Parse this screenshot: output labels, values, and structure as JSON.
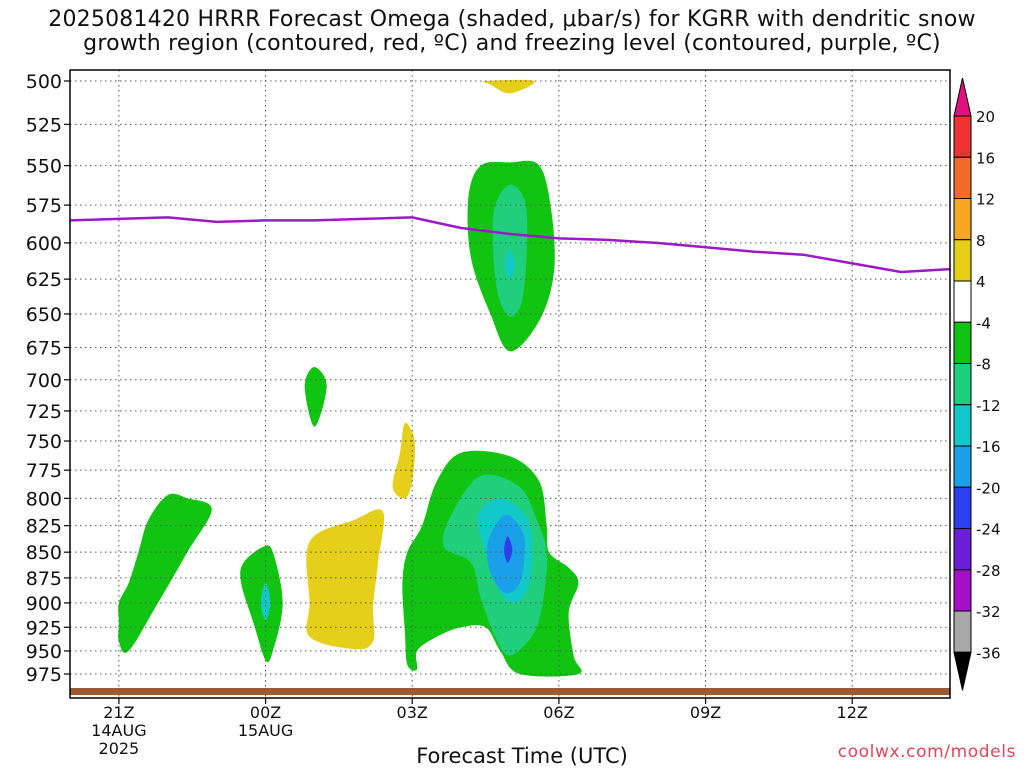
{
  "title": {
    "line1": "2025081420 HRRR Forecast Omega (shaded, μbar/s) for KGRR with dendritic snow",
    "line2": "growth region (contoured, red, ºC) and freezing level (contoured, purple, ºC)"
  },
  "credit": "coolwx.com/models",
  "chart_data": {
    "type": "time-height cross section (filled contour)",
    "xlabel": "Forecast Time (UTC)",
    "x_ticks": [
      {
        "hour": 1,
        "label": "21Z",
        "sub1": "14AUG",
        "sub2": "2025"
      },
      {
        "hour": 4,
        "label": "00Z",
        "sub1": "15AUG",
        "sub2": ""
      },
      {
        "hour": 7,
        "label": "03Z",
        "sub1": "",
        "sub2": ""
      },
      {
        "hour": 10,
        "label": "06Z",
        "sub1": "",
        "sub2": ""
      },
      {
        "hour": 13,
        "label": "09Z",
        "sub1": "",
        "sub2": ""
      },
      {
        "hour": 16,
        "label": "12Z",
        "sub1": "",
        "sub2": ""
      }
    ],
    "x_range_hours": [
      0,
      18
    ],
    "y_scale": "log-pressure (inverted)",
    "y_range_hPa": [
      1000,
      500
    ],
    "y_ticks": [
      "500",
      "525",
      "550",
      "575",
      "600",
      "625",
      "650",
      "675",
      "700",
      "725",
      "750",
      "775",
      "800",
      "825",
      "850",
      "875",
      "900",
      "925",
      "950",
      "975"
    ],
    "grid": true,
    "colorbar": {
      "labels": [
        "20",
        "16",
        "12",
        "8",
        "4",
        "-4",
        "-8",
        "-12",
        "-16",
        "-20",
        "-24",
        "-28",
        "-32",
        "-36"
      ],
      "bins": [
        {
          "range": ">20",
          "color": "#e0117f"
        },
        {
          "range": "16 to 20",
          "color": "#ee3333"
        },
        {
          "range": "12 to 16",
          "color": "#f26b2a"
        },
        {
          "range": "8 to 12",
          "color": "#f5a623"
        },
        {
          "range": "4 to 8",
          "color": "#e6cf1a"
        },
        {
          "range": "-4 to 4",
          "color": "#ffffff"
        },
        {
          "range": "-8 to -4",
          "color": "#12c412"
        },
        {
          "range": "-12 to -8",
          "color": "#1fcf7c"
        },
        {
          "range": "-16 to -12",
          "color": "#12c8c8"
        },
        {
          "range": "-20 to -16",
          "color": "#1aa0e8"
        },
        {
          "range": "-24 to -20",
          "color": "#2a3ff0"
        },
        {
          "range": "-28 to -24",
          "color": "#6a1fd6"
        },
        {
          "range": "-32 to -28",
          "color": "#a60fc8"
        },
        {
          "range": "-36 to -32",
          "color": "#a8a8a8"
        },
        {
          "range": "<-36",
          "color": "#000000"
        }
      ]
    },
    "freezing_level": {
      "color": "#9b19c7",
      "points": [
        [
          0,
          585
        ],
        [
          1,
          584
        ],
        [
          2,
          583
        ],
        [
          3,
          586
        ],
        [
          4,
          585
        ],
        [
          5,
          585
        ],
        [
          6,
          584
        ],
        [
          7,
          583
        ],
        [
          8,
          590
        ],
        [
          9,
          594
        ],
        [
          10,
          597
        ],
        [
          11,
          598
        ],
        [
          12,
          600
        ],
        [
          13,
          603
        ],
        [
          14,
          606
        ],
        [
          15,
          608
        ],
        [
          16,
          614
        ],
        [
          17,
          620
        ],
        [
          18,
          618
        ]
      ]
    },
    "omega_features": [
      {
        "level": "4 to 8",
        "color": "#e6cf1a",
        "points": [
          [
            8.5,
            500
          ],
          [
            9.5,
            500
          ],
          [
            9.0,
            507
          ],
          [
            8.6,
            502
          ]
        ]
      },
      {
        "level": "-8 to -4",
        "color": "#12c412",
        "points": [
          [
            9.0,
            548
          ],
          [
            9.6,
            550
          ],
          [
            9.85,
            580
          ],
          [
            9.9,
            620
          ],
          [
            9.6,
            655
          ],
          [
            9.0,
            678
          ],
          [
            8.6,
            650
          ],
          [
            8.2,
            610
          ],
          [
            8.15,
            570
          ],
          [
            8.4,
            550
          ]
        ]
      },
      {
        "level": "-12 to -8",
        "color": "#1fcf7c",
        "points": [
          [
            9.0,
            562
          ],
          [
            9.3,
            572
          ],
          [
            9.35,
            600
          ],
          [
            9.25,
            640
          ],
          [
            9.0,
            652
          ],
          [
            8.75,
            635
          ],
          [
            8.65,
            600
          ],
          [
            8.7,
            575
          ]
        ]
      },
      {
        "level": "-16 to -12",
        "color": "#12c8c8",
        "points": [
          [
            9.0,
            605
          ],
          [
            9.1,
            615
          ],
          [
            9.0,
            625
          ],
          [
            8.9,
            615
          ]
        ]
      },
      {
        "level": "-8 to -4",
        "color": "#12c412",
        "points": [
          [
            5.0,
            690
          ],
          [
            5.25,
            705
          ],
          [
            5.0,
            738
          ],
          [
            4.8,
            705
          ]
        ]
      },
      {
        "level": "4 to 8",
        "color": "#e6cf1a",
        "points": [
          [
            6.85,
            735
          ],
          [
            7.05,
            750
          ],
          [
            7.0,
            785
          ],
          [
            6.85,
            800
          ],
          [
            6.6,
            790
          ],
          [
            6.75,
            760
          ]
        ]
      },
      {
        "level": "-8 to -4",
        "color": "#12c412",
        "points": [
          [
            8.0,
            760
          ],
          [
            9.0,
            763
          ],
          [
            9.6,
            785
          ],
          [
            9.75,
            825
          ],
          [
            9.8,
            850
          ],
          [
            10.2,
            865
          ],
          [
            10.4,
            880
          ],
          [
            10.2,
            910
          ],
          [
            10.3,
            955
          ],
          [
            10.4,
            975
          ],
          [
            9.2,
            975
          ],
          [
            8.8,
            950
          ],
          [
            8.5,
            925
          ],
          [
            8.0,
            925
          ],
          [
            7.5,
            935
          ],
          [
            7.1,
            950
          ],
          [
            7.1,
            970
          ],
          [
            6.9,
            965
          ],
          [
            6.85,
            930
          ],
          [
            6.8,
            880
          ],
          [
            6.9,
            850
          ],
          [
            7.2,
            825
          ],
          [
            7.5,
            785
          ]
        ]
      },
      {
        "level": "-12 to -8",
        "color": "#1fcf7c",
        "points": [
          [
            8.4,
            780
          ],
          [
            9.2,
            790
          ],
          [
            9.55,
            820
          ],
          [
            9.75,
            850
          ],
          [
            9.7,
            890
          ],
          [
            9.5,
            930
          ],
          [
            9.0,
            955
          ],
          [
            8.7,
            935
          ],
          [
            8.4,
            895
          ],
          [
            8.2,
            860
          ],
          [
            7.65,
            845
          ],
          [
            7.8,
            815
          ]
        ]
      },
      {
        "level": "-16 to -12",
        "color": "#12c8c8",
        "points": [
          [
            8.8,
            800
          ],
          [
            9.3,
            815
          ],
          [
            9.45,
            840
          ],
          [
            9.4,
            880
          ],
          [
            9.1,
            900
          ],
          [
            8.75,
            885
          ],
          [
            8.5,
            850
          ],
          [
            8.35,
            815
          ]
        ]
      },
      {
        "level": "-20 to -16",
        "color": "#1aa0e8",
        "points": [
          [
            8.9,
            815
          ],
          [
            9.25,
            830
          ],
          [
            9.3,
            850
          ],
          [
            9.2,
            880
          ],
          [
            8.9,
            890
          ],
          [
            8.6,
            870
          ],
          [
            8.55,
            840
          ]
        ]
      },
      {
        "level": "-24 to -20",
        "color": "#2a3ff0",
        "points": [
          [
            8.95,
            835
          ],
          [
            9.05,
            848
          ],
          [
            8.95,
            860
          ],
          [
            8.88,
            848
          ]
        ]
      },
      {
        "level": "-8 to -4",
        "color": "#12c412",
        "points": [
          [
            2.0,
            797
          ],
          [
            2.4,
            800
          ],
          [
            2.9,
            810
          ],
          [
            2.4,
            850
          ],
          [
            1.8,
            900
          ],
          [
            1.2,
            950
          ],
          [
            1.0,
            940
          ],
          [
            1.0,
            920
          ],
          [
            1.0,
            900
          ],
          [
            1.2,
            880
          ],
          [
            1.4,
            850
          ],
          [
            1.6,
            820
          ]
        ]
      },
      {
        "level": "-8 to -4",
        "color": "#12c412",
        "points": [
          [
            3.95,
            845
          ],
          [
            4.15,
            850
          ],
          [
            4.35,
            900
          ],
          [
            4.15,
            950
          ],
          [
            4.0,
            960
          ],
          [
            3.75,
            920
          ],
          [
            3.5,
            880
          ],
          [
            3.55,
            860
          ]
        ]
      },
      {
        "level": "-16 to -12",
        "color": "#12c8c8",
        "points": [
          [
            4.0,
            880
          ],
          [
            4.1,
            900
          ],
          [
            4.0,
            918
          ],
          [
            3.9,
            900
          ]
        ]
      },
      {
        "level": "4 to 8",
        "color": "#e6cf1a",
        "points": [
          [
            5.8,
            820
          ],
          [
            6.4,
            812
          ],
          [
            6.3,
            860
          ],
          [
            6.2,
            905
          ],
          [
            6.2,
            940
          ],
          [
            5.8,
            948
          ],
          [
            4.9,
            935
          ],
          [
            4.9,
            900
          ],
          [
            4.9,
            840
          ]
        ]
      }
    ],
    "surface_strip": {
      "color": "#9a5a34"
    }
  }
}
